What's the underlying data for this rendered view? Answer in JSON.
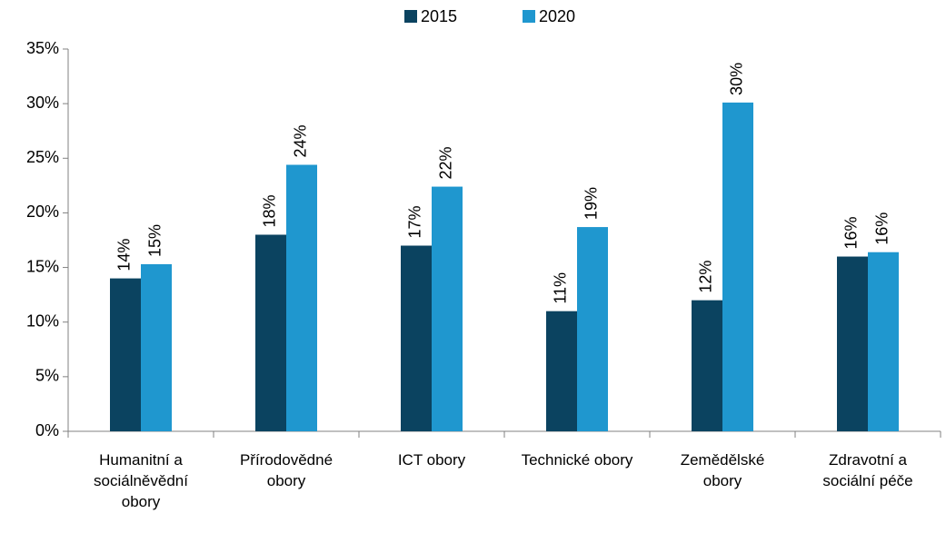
{
  "chart_data": {
    "type": "bar",
    "categories": [
      "Humanitní a sociálněvědní obory",
      "Přírodovědné obory",
      "ICT obory",
      "Technické obory",
      "Zemědělské obory",
      "Zdravotní a sociální péče"
    ],
    "series": [
      {
        "name": "2015",
        "color": "#0b4360",
        "values": [
          14,
          18,
          17,
          11,
          12,
          16
        ],
        "value_labels": [
          "14%",
          "18%",
          "17%",
          "11%",
          "12%",
          "16%"
        ]
      },
      {
        "name": "2020",
        "color": "#1f97cf",
        "values": [
          15.3,
          24.4,
          22.4,
          18.7,
          30.1,
          16.4
        ],
        "value_labels": [
          "15%",
          "24%",
          "22%",
          "19%",
          "30%",
          "16%"
        ]
      }
    ],
    "ylim": [
      0,
      35
    ],
    "yticks": [
      {
        "value": 0,
        "label": "0%"
      },
      {
        "value": 5,
        "label": "5%"
      },
      {
        "value": 10,
        "label": "10%"
      },
      {
        "value": 15,
        "label": "15%"
      },
      {
        "value": 20,
        "label": "20%"
      },
      {
        "value": 25,
        "label": "25%"
      },
      {
        "value": 30,
        "label": "30%"
      },
      {
        "value": 35,
        "label": "35%"
      }
    ],
    "legend": "top"
  }
}
